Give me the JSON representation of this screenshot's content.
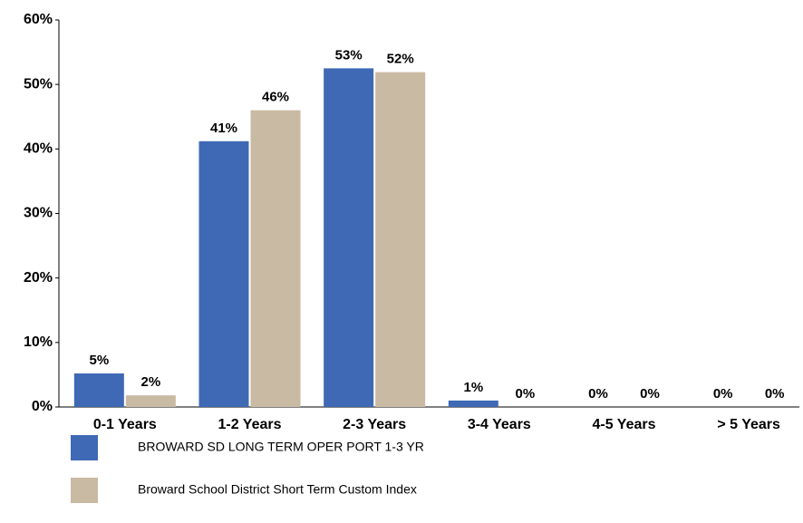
{
  "chart_data": {
    "type": "bar",
    "categories": [
      "0-1 Years",
      "1-2 Years",
      "2-3 Years",
      "3-4 Years",
      "4-5 Years",
      "> 5 Years"
    ],
    "series": [
      {
        "name": "BROWARD SD LONG TERM OPER PORT 1-3 YR",
        "color": "#3f69b5",
        "values": [
          5.2,
          41.2,
          52.5,
          1.0,
          0,
          0
        ],
        "value_labels": [
          "5%",
          "41%",
          "53%",
          "1%",
          "0%",
          "0%"
        ]
      },
      {
        "name": "Broward School District Short Term Custom Index",
        "color": "#c9baa3",
        "values": [
          1.8,
          46,
          51.9,
          0,
          0,
          0
        ],
        "value_labels": [
          "2%",
          "46%",
          "52%",
          "0%",
          "0%",
          "0%"
        ]
      }
    ],
    "ylim": [
      0,
      60
    ],
    "yticks": [
      {
        "value": 0,
        "label": "0%"
      },
      {
        "value": 10,
        "label": "10%"
      },
      {
        "value": 20,
        "label": "20%"
      },
      {
        "value": 30,
        "label": "30%"
      },
      {
        "value": 40,
        "label": "40%"
      },
      {
        "value": 50,
        "label": "50%"
      },
      {
        "value": 60,
        "label": "60%"
      }
    ],
    "grid": false
  }
}
